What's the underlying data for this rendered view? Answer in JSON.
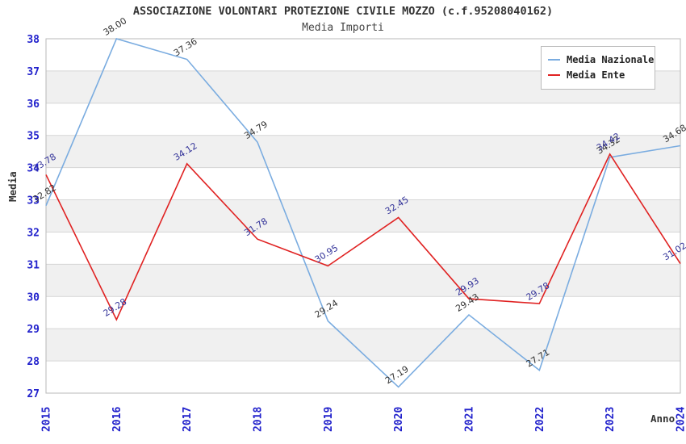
{
  "title": "ASSOCIAZIONE VOLONTARI PROTEZIONE CIVILE MOZZO (c.f.95208040162)",
  "subtitle": "Media Importi",
  "chart_data": {
    "type": "line",
    "x": [
      2015,
      2016,
      2017,
      2018,
      2019,
      2020,
      2021,
      2022,
      2023,
      2024
    ],
    "xlabel": "Anno",
    "ylabel": "Media",
    "ylim": [
      27,
      38
    ],
    "ytick_step": 1,
    "grid": true,
    "legend_position": "top-right",
    "series": [
      {
        "name": "Media Nazionale",
        "color": "#7aace0",
        "label_color": "#333333",
        "values": [
          32.82,
          38.0,
          37.36,
          34.79,
          29.24,
          27.19,
          29.43,
          27.71,
          34.32,
          34.68
        ]
      },
      {
        "name": "Media Ente",
        "color": "#e02222",
        "label_color": "#333399",
        "values": [
          33.78,
          29.28,
          34.12,
          31.78,
          30.95,
          32.45,
          29.93,
          29.78,
          34.42,
          31.02
        ]
      }
    ],
    "style": {
      "tick_label_color": "#2222cc",
      "band_color": "#f0f0f0",
      "grid_color": "#d6d6d6",
      "border_color": "#b8b8b8"
    }
  }
}
